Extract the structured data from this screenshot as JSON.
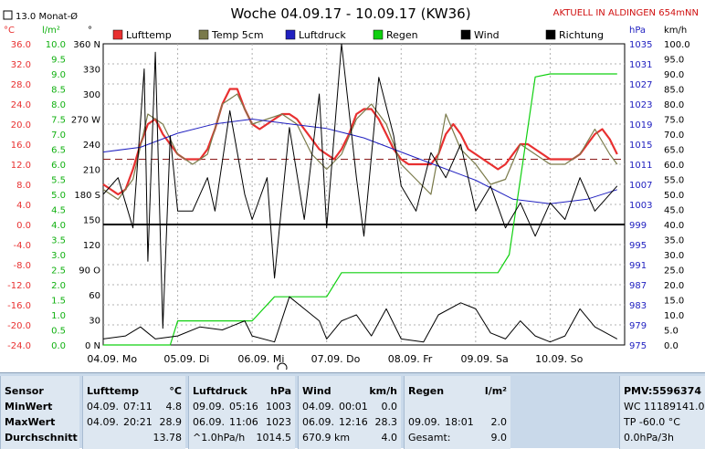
{
  "header": {
    "title": "Woche 04.09.17 - 10.09.17 (KW36)",
    "live": "AKTUELL IN ALDINGEN 654mNN",
    "monthly": "13.0 Monat-Ø"
  },
  "colors": {
    "temp": "#e83030",
    "temp5": "#7a7a4a",
    "pressure": "#2020c0",
    "rain": "#10d010",
    "wind": "#000000",
    "direction": "#000000"
  },
  "chart_data": {
    "type": "line",
    "x_labels": [
      "04.09. Mo",
      "05.09. Di",
      "06.09. Mi",
      "07.09. Do",
      "08.09. Fr",
      "09.09. Sa",
      "10.09. So"
    ],
    "legend": [
      "Lufttemp",
      "Temp 5cm",
      "Luftdruck",
      "Regen",
      "Wind",
      "Richtung"
    ],
    "axes": {
      "temp": {
        "unit": "°C",
        "min": -24,
        "max": 36,
        "ticks": [
          "36.0",
          "32.0",
          "28.0",
          "24.0",
          "20.0",
          "16.0",
          "12.0",
          "8.0",
          "4.0",
          "0.0",
          "-4.0",
          "-8.0",
          "-12.0",
          "-16.0",
          "-20.0",
          "-24.0"
        ]
      },
      "radiation": {
        "unit": "l/m²",
        "min": 0,
        "max": 10,
        "ticks": [
          "10.0",
          "9.5",
          "9.0",
          "8.5",
          "8.0",
          "7.5",
          "7.0",
          "6.5",
          "6.0",
          "5.5",
          "5.0",
          "4.5",
          "4.0",
          "3.5",
          "3.0",
          "2.5",
          "2.0",
          "1.5",
          "1.0",
          "0.5",
          "0.0"
        ]
      },
      "direction": {
        "unit": "°",
        "min": 0,
        "max": 360,
        "ticks": [
          "360 N",
          "330",
          "300",
          "270 W",
          "240",
          "210",
          "180 S",
          "150",
          "120",
          "90 O",
          "60",
          "30",
          "0 N"
        ]
      },
      "pressure": {
        "unit": "hPa",
        "min": 975,
        "max": 1039,
        "ticks": [
          "1035",
          "1031",
          "1027",
          "1023",
          "1019",
          "1015",
          "1011",
          "1007",
          "1003",
          "999",
          "995",
          "991",
          "987",
          "983",
          "979",
          "975"
        ]
      },
      "wind": {
        "unit": "km/h",
        "min": 0,
        "max": 100,
        "ticks": [
          "100.0",
          "95.0",
          "90.0",
          "85.0",
          "80.0",
          "75.0",
          "70.0",
          "65.0",
          "60.0",
          "55.0",
          "50.0",
          "45.0",
          "40.0",
          "35.0",
          "30.0",
          "25.0",
          "20.0",
          "15.0",
          "10.0",
          "5.0",
          "0.0"
        ]
      }
    },
    "monthly_mean_temp": 13.0,
    "series": [
      {
        "name": "Lufttemp",
        "axis": "temp",
        "x": [
          0,
          0.1,
          0.2,
          0.3,
          0.4,
          0.5,
          0.6,
          0.7,
          0.8,
          0.9,
          1.0,
          1.1,
          1.2,
          1.3,
          1.4,
          1.5,
          1.6,
          1.7,
          1.8,
          1.9,
          2.0,
          2.1,
          2.2,
          2.3,
          2.4,
          2.5,
          2.6,
          2.7,
          2.8,
          2.9,
          3.0,
          3.1,
          3.2,
          3.3,
          3.4,
          3.5,
          3.6,
          3.7,
          3.8,
          3.9,
          4.0,
          4.1,
          4.2,
          4.3,
          4.4,
          4.5,
          4.6,
          4.7,
          4.8,
          4.9,
          5.0,
          5.1,
          5.2,
          5.3,
          5.4,
          5.5,
          5.6,
          5.7,
          5.8,
          5.9,
          6.0,
          6.1,
          6.2,
          6.3,
          6.4,
          6.5,
          6.6,
          6.7,
          6.8,
          6.9
        ],
        "y": [
          8,
          7,
          6,
          7,
          11,
          16,
          20,
          21,
          18,
          16,
          14,
          13,
          13,
          13,
          15,
          19,
          24,
          27,
          27,
          23,
          20,
          19,
          20,
          21,
          22,
          22,
          21,
          19,
          17,
          15,
          14,
          13,
          15,
          18,
          22,
          23,
          23,
          21,
          18,
          15,
          13,
          12,
          12,
          12,
          12,
          14,
          18,
          20,
          18,
          15,
          14,
          13,
          12,
          11,
          12,
          14,
          16,
          16,
          15,
          14,
          13,
          13,
          13,
          13,
          14,
          16,
          18,
          19,
          17,
          14
        ]
      },
      {
        "name": "Temp 5cm",
        "axis": "temp",
        "x": [
          0,
          0.2,
          0.4,
          0.6,
          0.8,
          1.0,
          1.2,
          1.4,
          1.6,
          1.8,
          2.0,
          2.2,
          2.4,
          2.6,
          2.8,
          3.0,
          3.2,
          3.4,
          3.6,
          3.8,
          4.0,
          4.2,
          4.4,
          4.6,
          4.8,
          5.0,
          5.2,
          5.4,
          5.6,
          5.8,
          6.0,
          6.2,
          6.4,
          6.6,
          6.8,
          6.9
        ],
        "y": [
          7,
          5,
          9,
          22,
          20,
          14,
          12,
          14,
          24,
          26,
          20,
          21,
          22,
          20,
          14,
          11,
          14,
          21,
          24,
          20,
          12,
          9,
          6,
          22,
          15,
          12,
          8,
          9,
          16,
          14,
          12,
          12,
          14,
          19,
          14,
          12
        ]
      },
      {
        "name": "Luftdruck",
        "axis": "pressure",
        "x": [
          0,
          0.5,
          1.0,
          1.5,
          2.0,
          2.5,
          3.0,
          3.5,
          4.0,
          4.5,
          5.0,
          5.5,
          6.0,
          6.5,
          6.9
        ],
        "y": [
          1016,
          1017,
          1020,
          1022,
          1023,
          1022,
          1021,
          1019,
          1016,
          1013,
          1010,
          1006,
          1005,
          1006,
          1008
        ]
      },
      {
        "name": "Regen",
        "axis": "radiation",
        "x": [
          0,
          0.9,
          1.0,
          2.0,
          2.3,
          2.6,
          3.0,
          3.2,
          3.6,
          4.0,
          4.5,
          5.0,
          5.3,
          5.45,
          5.6,
          5.8,
          6.0,
          6.5,
          6.9
        ],
        "y": [
          0,
          0,
          0.8,
          0.8,
          1.6,
          1.6,
          1.6,
          2.4,
          2.4,
          2.4,
          2.4,
          2.4,
          2.4,
          3.0,
          5.5,
          8.9,
          9.0,
          9.0,
          9.0
        ]
      },
      {
        "name": "Wind",
        "axis": "wind",
        "x": [
          0,
          0.3,
          0.5,
          0.6,
          0.7,
          1.0,
          1.3,
          1.6,
          1.9,
          2.0,
          2.3,
          2.5,
          2.7,
          2.9,
          3.0,
          3.2,
          3.4,
          3.6,
          3.8,
          4.0,
          4.3,
          4.5,
          4.8,
          5.0,
          5.2,
          5.4,
          5.6,
          5.8,
          6.0,
          6.2,
          6.4,
          6.6,
          6.9
        ],
        "y": [
          2,
          3,
          6,
          4,
          2,
          3,
          6,
          5,
          8,
          3,
          1,
          16,
          12,
          8,
          2,
          8,
          10,
          3,
          12,
          2,
          1,
          10,
          14,
          12,
          4,
          2,
          8,
          3,
          1,
          3,
          12,
          6,
          2
        ]
      },
      {
        "name": "Richtung",
        "axis": "direction",
        "x": [
          0,
          0.2,
          0.4,
          0.55,
          0.6,
          0.7,
          0.8,
          0.9,
          1.0,
          1.2,
          1.4,
          1.5,
          1.7,
          1.9,
          2.0,
          2.2,
          2.3,
          2.5,
          2.7,
          2.9,
          3.0,
          3.2,
          3.4,
          3.5,
          3.7,
          3.9,
          4.0,
          4.2,
          4.4,
          4.6,
          4.8,
          5.0,
          5.2,
          5.4,
          5.6,
          5.8,
          6.0,
          6.2,
          6.4,
          6.6,
          6.9
        ],
        "y": [
          180,
          200,
          140,
          330,
          100,
          350,
          20,
          250,
          160,
          160,
          200,
          160,
          280,
          180,
          150,
          200,
          80,
          260,
          150,
          300,
          140,
          360,
          200,
          130,
          320,
          250,
          190,
          160,
          230,
          200,
          240,
          160,
          190,
          140,
          170,
          130,
          170,
          150,
          200,
          160,
          190
        ]
      }
    ]
  },
  "stats": {
    "sensor": {
      "header": "Sensor",
      "rows": [
        "MinWert",
        "MaxWert",
        "Durchschnitt"
      ]
    },
    "temp": {
      "header": "Lufttemp",
      "unit": "°C",
      "rows": [
        {
          "date": "04.09.",
          "time": "07:11",
          "value": "4.8"
        },
        {
          "date": "04.09.",
          "time": "20:21",
          "value": "28.9"
        },
        {
          "date": "",
          "time": "",
          "value": "13.78"
        }
      ]
    },
    "pressure": {
      "header": "Luftdruck",
      "unit": "hPa",
      "rows": [
        {
          "date": "09.09.",
          "time": "05:16",
          "value": "1003"
        },
        {
          "date": "06.09.",
          "time": "11:06",
          "value": "1023"
        },
        {
          "date": "^1.0hPa/h",
          "time": "",
          "value": "1014.5"
        }
      ]
    },
    "wind": {
      "header": "Wind",
      "unit": "km/h",
      "rows": [
        {
          "date": "04.09.",
          "time": "00:01",
          "value": "0.0"
        },
        {
          "date": "06.09.",
          "time": "12:16",
          "value": "28.3"
        },
        {
          "date": "670.9 km",
          "time": "",
          "value": "4.0"
        }
      ]
    },
    "rain": {
      "header": "Regen",
      "unit": "l/m²",
      "rows": [
        {
          "date": "",
          "time": "",
          "value": ""
        },
        {
          "date": "09.09.",
          "time": "18:01",
          "value": "2.0"
        },
        {
          "date": "Gesamt:",
          "time": "",
          "value": "9.0"
        }
      ]
    },
    "pmv": {
      "header": "PMV:5596374",
      "rows": [
        "WC 11189141.0",
        "TP -60.0 °C",
        "0.0hPa/3h"
      ]
    }
  }
}
